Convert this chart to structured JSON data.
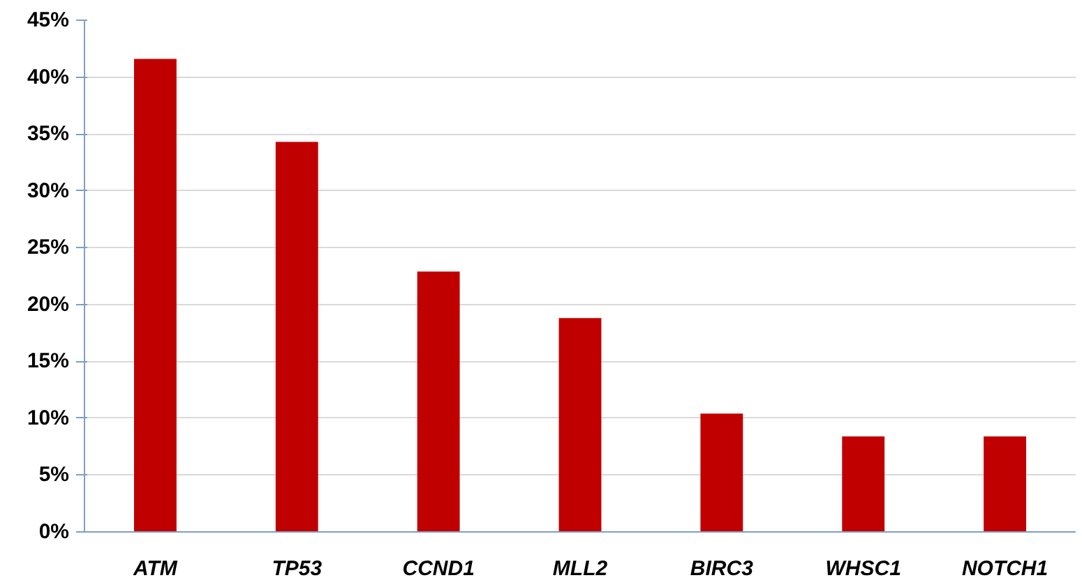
{
  "chart_data": {
    "type": "bar",
    "categories": [
      "ATM",
      "TP53",
      "CCND1",
      "MLL2",
      "BIRC3",
      "WHSC1",
      "NOTCH1"
    ],
    "values": [
      41.6,
      34.3,
      22.9,
      18.8,
      10.4,
      8.4,
      8.4
    ],
    "color": "#c00000",
    "ylim": [
      0,
      45
    ],
    "yticks": [
      {
        "value": 0,
        "label": "0%"
      },
      {
        "value": 5,
        "label": "5%"
      },
      {
        "value": 10,
        "label": "10%"
      },
      {
        "value": 15,
        "label": "15%"
      },
      {
        "value": 20,
        "label": "20%"
      },
      {
        "value": 25,
        "label": "25%"
      },
      {
        "value": 30,
        "label": "30%"
      },
      {
        "value": 35,
        "label": "35%"
      },
      {
        "value": 40,
        "label": "40%"
      },
      {
        "value": 45,
        "label": "45%"
      }
    ],
    "grid": "y"
  }
}
